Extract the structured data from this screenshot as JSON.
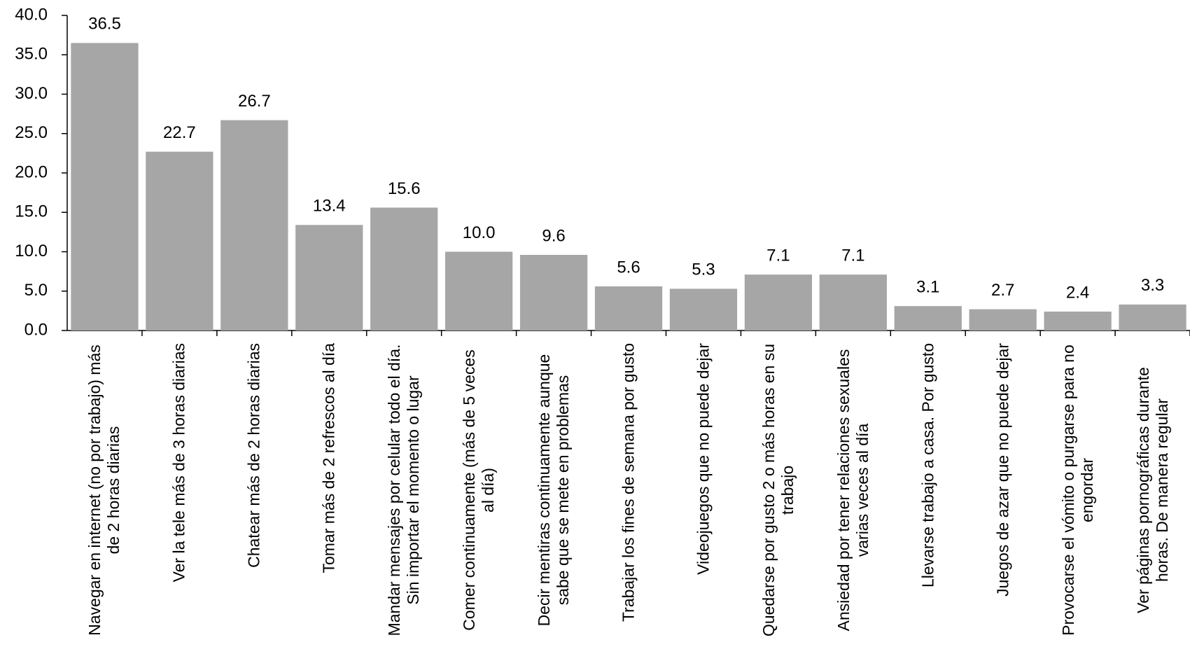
{
  "chart_data": {
    "type": "bar",
    "categories": [
      "Navegar en internet (no por trabajo) más de 2 horas diarias",
      "Ver la tele más de 3 horas diarias",
      "Chatear más de 2 horas diarias",
      "Tomar más de 2 refrescos al día",
      "Mandar mensajes por celular todo el día. Sin importar el momento o lugar",
      "Comer continuamente (más de 5 veces al día)",
      "Decir mentiras continuamente aunque sabe que se mete en problemas",
      "Trabajar los fines de semana por gusto",
      "Videojuegos que no puede dejar",
      "Quedarse por gusto 2 o más horas en su trabajo",
      "Ansiedad por tener relaciones sexuales varias veces al día",
      "Llevarse trabajo a casa. Por gusto",
      "Juegos de azar que no puede dejar",
      "Provocarse el vómito o purgarse para no engordar",
      "Ver páginas pornográficas durante horas. De manera regular"
    ],
    "values": [
      36.5,
      22.7,
      26.7,
      13.4,
      15.6,
      10.0,
      9.6,
      5.6,
      5.3,
      7.1,
      7.1,
      3.1,
      2.7,
      2.4,
      3.3
    ],
    "value_labels": [
      "36.5",
      "22.7",
      "26.7",
      "13.4",
      "15.6",
      "10.0",
      "9.6",
      "5.6",
      "5.3",
      "7.1",
      "7.1",
      "3.1",
      "2.7",
      "2.4",
      "3.3"
    ],
    "color": "#a6a6a6",
    "ylim": [
      0,
      40
    ],
    "yticks": [
      {
        "value": 0,
        "label": "0.0"
      },
      {
        "value": 5,
        "label": "5.0"
      },
      {
        "value": 10,
        "label": "10.0"
      },
      {
        "value": 15,
        "label": "15.0"
      },
      {
        "value": 20,
        "label": "20.0"
      },
      {
        "value": 25,
        "label": "25.0"
      },
      {
        "value": 30,
        "label": "30.0"
      },
      {
        "value": 35,
        "label": "35.0"
      },
      {
        "value": 40,
        "label": "40.0"
      }
    ]
  }
}
